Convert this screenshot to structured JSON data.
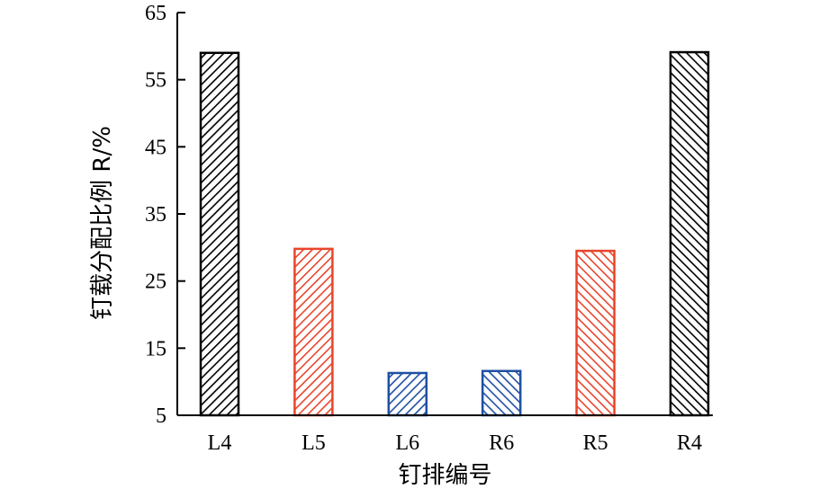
{
  "chart_data": {
    "type": "bar",
    "title": "",
    "xlabel": "钉排编号",
    "ylabel": "钉载分配比例 R/%",
    "categories": [
      "L4",
      "L5",
      "L6",
      "R6",
      "R5",
      "R4"
    ],
    "values": [
      59.0,
      29.8,
      11.3,
      11.6,
      29.5,
      59.1
    ],
    "ylim": [
      5,
      65
    ],
    "yticks": [
      5,
      15,
      25,
      35,
      45,
      55,
      65
    ],
    "grid": false,
    "legend": "none",
    "bar_colors": [
      "#000000",
      "#e8452c",
      "#1f4fa3",
      "#1f4fa3",
      "#e8452c",
      "#000000"
    ],
    "hatch_direction": [
      "forward",
      "forward",
      "forward",
      "backward",
      "backward",
      "backward"
    ]
  }
}
